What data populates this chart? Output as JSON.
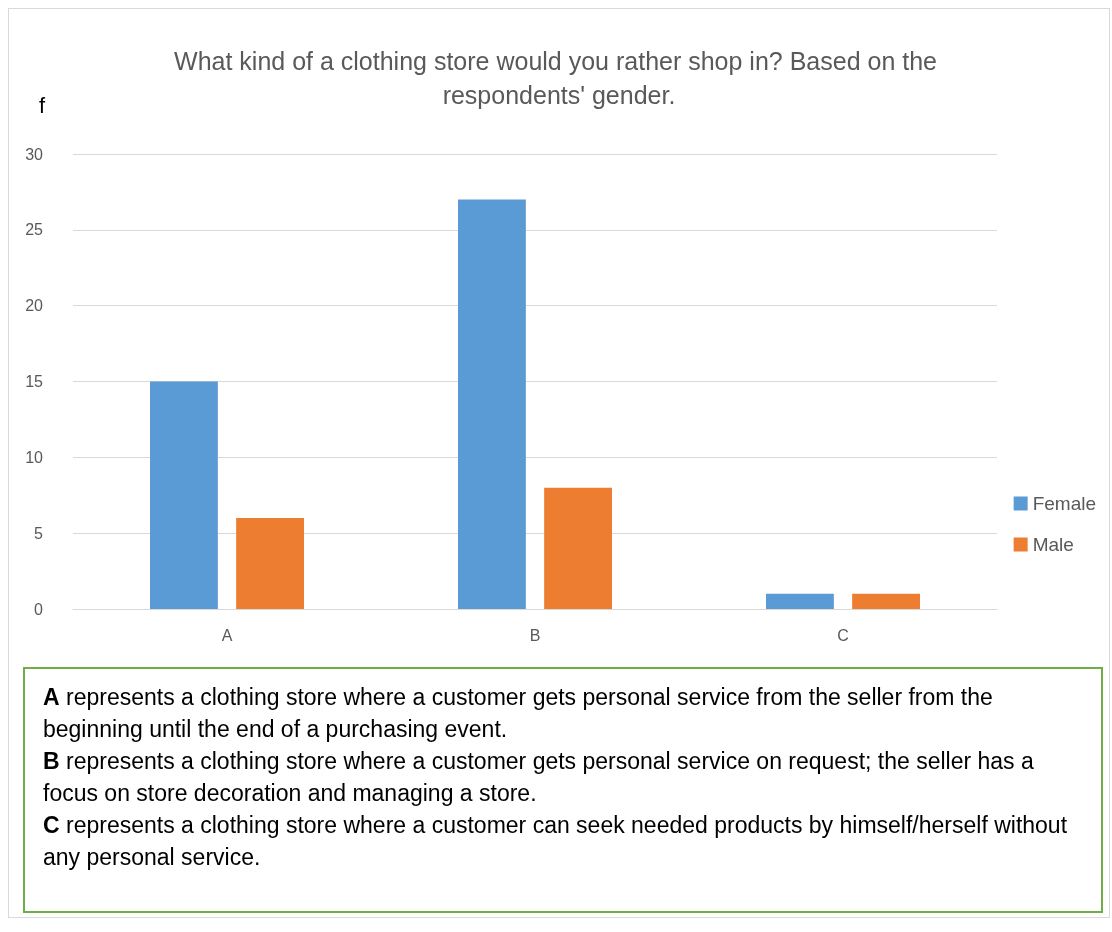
{
  "chart_data": {
    "type": "bar",
    "title": "What kind of a clothing store would you rather shop in? Based on the respondents' gender.",
    "ylabel": "f",
    "categories": [
      "A",
      "B",
      "C"
    ],
    "series": [
      {
        "name": "Female",
        "color": "#5b9bd5",
        "values": [
          15,
          27,
          1
        ]
      },
      {
        "name": "Male",
        "color": "#ed7d31",
        "values": [
          6,
          8,
          1
        ]
      }
    ],
    "ylim": [
      0,
      30
    ],
    "yticks": [
      0,
      5,
      10,
      15,
      20,
      25,
      30
    ],
    "grid": "y",
    "legend": "right",
    "annotations": [
      "A represents a clothing store where a customer gets personal service from the seller from the beginning until the end of a purchasing event.",
      "B represents a clothing store where a customer gets personal service on request; the seller has a focus on store decoration and managing a store.",
      "C represents a clothing store where a customer can seek needed products by himself/herself without any personal service."
    ]
  }
}
